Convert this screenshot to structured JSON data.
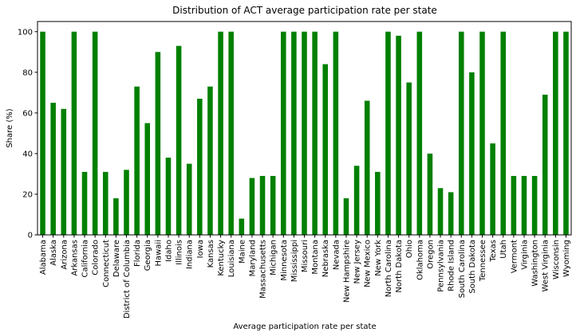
{
  "chart_data": {
    "type": "bar",
    "title": "Distribution of ACT average participation rate per state",
    "xlabel": "Average participation rate per state",
    "ylabel": "Share (%)",
    "ylim": [
      0,
      105
    ],
    "yticks": [
      0,
      20,
      40,
      60,
      80,
      100
    ],
    "grid": false,
    "bar_color": "#008000",
    "categories": [
      "Alabama",
      "Alaska",
      "Arizona",
      "Arkansas",
      "California",
      "Colorado",
      "Connecticut",
      "Delaware",
      "District of Columbia",
      "Florida",
      "Georgia",
      "Hawaii",
      "Idaho",
      "Illinois",
      "Indiana",
      "Iowa",
      "Kansas",
      "Kentucky",
      "Louisiana",
      "Maine",
      "Maryland",
      "Massachusetts",
      "Michigan",
      "Minnesota",
      "Mississippi",
      "Missouri",
      "Montana",
      "Nebraska",
      "Nevada",
      "New Hampshire",
      "New Jersey",
      "New Mexico",
      "New York",
      "North Carolina",
      "North Dakota",
      "Ohio",
      "Oklahoma",
      "Oregon",
      "Pennsylvania",
      "Rhode Island",
      "South Carolina",
      "South Dakota",
      "Tennessee",
      "Texas",
      "Utah",
      "Vermont",
      "Virginia",
      "Washington",
      "West Virginia",
      "Wisconsin",
      "Wyoming"
    ],
    "values": [
      100,
      65,
      62,
      100,
      31,
      100,
      31,
      18,
      32,
      73,
      55,
      90,
      38,
      93,
      35,
      67,
      73,
      100,
      100,
      8,
      28,
      29,
      29,
      100,
      100,
      100,
      100,
      84,
      100,
      18,
      34,
      66,
      31,
      100,
      98,
      75,
      100,
      40,
      23,
      21,
      100,
      80,
      100,
      45,
      100,
      29,
      29,
      29,
      69,
      100,
      100
    ]
  }
}
